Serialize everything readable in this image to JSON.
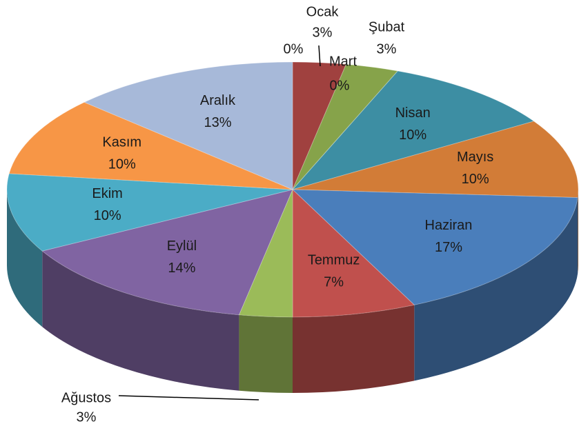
{
  "chart_data": {
    "type": "pie3d",
    "categories": [
      null,
      "Ocak",
      "Şubat",
      "Mart",
      "Nisan",
      "Mayıs",
      "Haziran",
      "Temmuz",
      "Ağustos",
      "Eylül",
      "Ekim",
      "Kasım",
      "Aralık"
    ],
    "values": [
      0,
      3,
      3,
      0,
      10,
      10,
      17,
      7,
      3,
      14,
      10,
      10,
      13
    ],
    "value_labels": [
      "0%",
      "3%",
      "3%",
      "0%",
      "10%",
      "10%",
      "17%",
      "7%",
      "3%",
      "14%",
      "10%",
      "10%",
      "13%"
    ],
    "colors": [
      "#4f81bd",
      "#a0413f",
      "#86a34a",
      "#6d5a8e",
      "#3d8ea3",
      "#d27c37",
      "#4a7ebb",
      "#c0504d",
      "#9bbb59",
      "#8064a2",
      "#4bacc6",
      "#f79646",
      "#a7b9d9"
    ]
  }
}
